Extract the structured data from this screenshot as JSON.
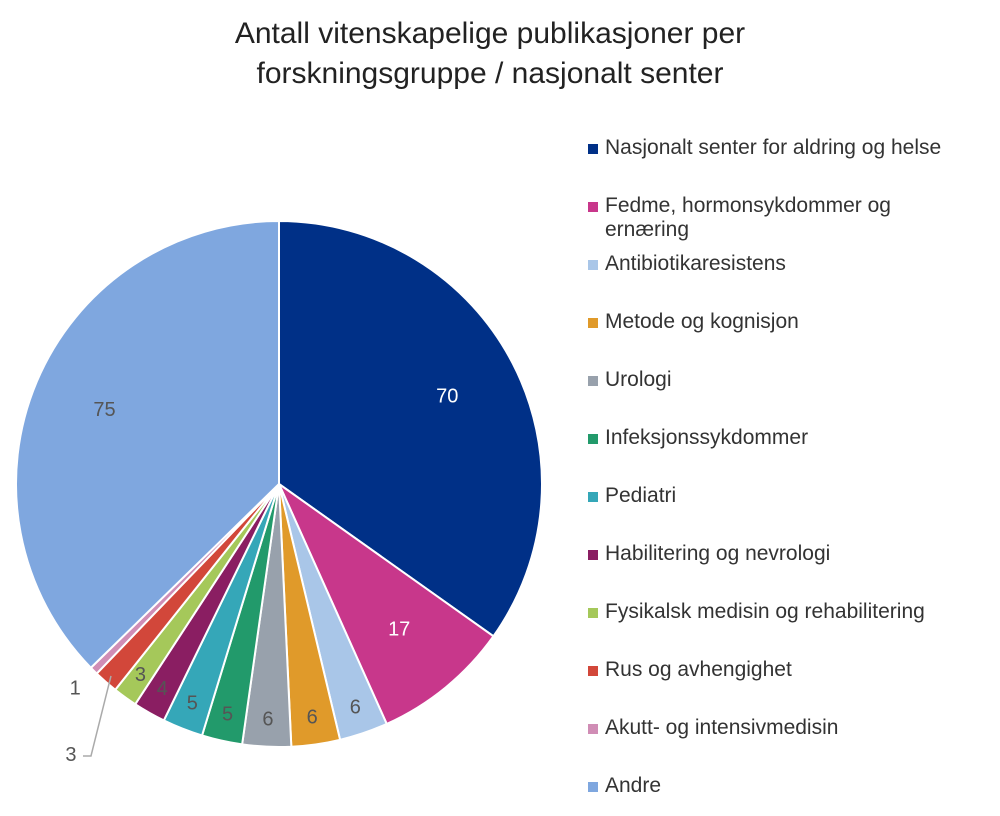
{
  "chart_data": {
    "type": "pie",
    "title": "Antall vitenskapelige publikasjoner per forskningsgruppe / nasjonalt senter",
    "categories": [
      "Nasjonalt senter for aldring og helse",
      "Fedme, hormonsykdommer og ernæring",
      "Antibiotikaresistens",
      "Metode og kognisjon",
      "Urologi",
      "Infeksjonssykdommer",
      "Pediatri",
      "Habilitering og nevrologi",
      "Fysikalsk medisin og rehabilitering",
      "Rus og avhengighet",
      "Akutt- og intensivmedisin",
      "Andre"
    ],
    "values": [
      70,
      17,
      6,
      6,
      6,
      5,
      5,
      4,
      3,
      3,
      1,
      75
    ],
    "colors": [
      "#003087",
      "#c8378b",
      "#a9c6e8",
      "#e09a2a",
      "#98a1ac",
      "#229a6b",
      "#35a7b8",
      "#8a1e62",
      "#a5c85a",
      "#d2473a",
      "#d08db5",
      "#7fa7df"
    ],
    "legend": "right"
  }
}
